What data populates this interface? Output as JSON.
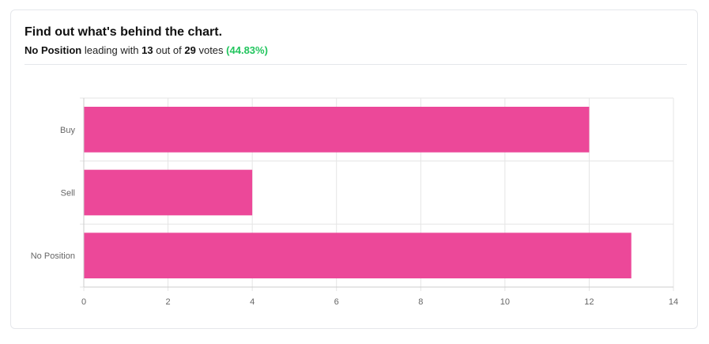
{
  "header": {
    "title": "Find out what's behind the chart.",
    "leader": "No Position",
    "text_leading": "leading with",
    "leader_votes": "13",
    "text_out_of": "out of",
    "total_votes": "29",
    "text_votes": "votes",
    "percent": "(44.83%)"
  },
  "colors": {
    "bar": "#ec4899",
    "percent": "#22c55e",
    "grid": "#e5e5e5"
  },
  "chart_data": {
    "type": "bar",
    "orientation": "horizontal",
    "categories": [
      "Buy",
      "Sell",
      "No Position"
    ],
    "values": [
      12,
      4,
      13
    ],
    "xlim": [
      0,
      14
    ],
    "xticks": [
      0,
      2,
      4,
      6,
      8,
      10,
      12,
      14
    ],
    "grid": true,
    "legend": "none"
  }
}
